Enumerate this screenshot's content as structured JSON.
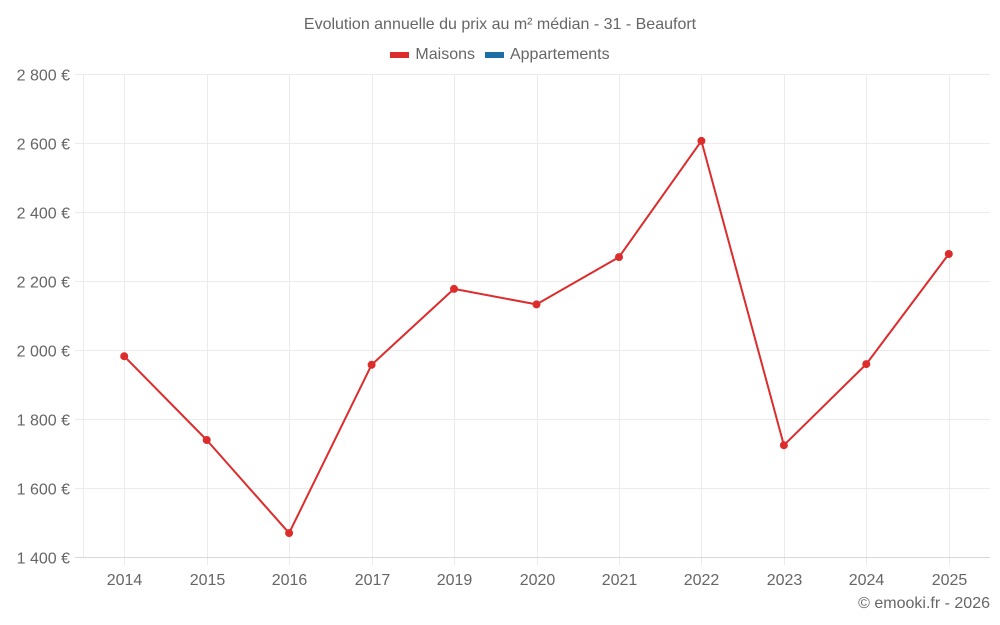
{
  "chart_data": {
    "type": "line",
    "title": "Evolution annuelle du prix au m² médian - 31 - Beaufort",
    "xlabel": "",
    "ylabel": "",
    "categories": [
      "2014",
      "2015",
      "2016",
      "2017",
      "2019",
      "2020",
      "2021",
      "2022",
      "2023",
      "2024",
      "2025"
    ],
    "series": [
      {
        "name": "Maisons",
        "color": "#dd2c2c",
        "values": [
          1983,
          1740,
          1470,
          1958,
          2178,
          2133,
          2270,
          2607,
          1725,
          1960,
          2279
        ]
      },
      {
        "name": "Appartements",
        "color": "#1c6ea4",
        "values": []
      }
    ],
    "ylim": [
      1400,
      2800
    ],
    "yticks": [
      1400,
      1600,
      1800,
      2000,
      2200,
      2400,
      2600,
      2800
    ],
    "ytick_labels": [
      "1 400 €",
      "1 600 €",
      "1 800 €",
      "2 000 €",
      "2 200 €",
      "2 400 €",
      "2 600 €",
      "2 800 €"
    ],
    "grid": true,
    "legend_position": "top-center"
  },
  "title": "Evolution annuelle du prix au m² médian - 31 - Beaufort",
  "legend": [
    {
      "label": "Maisons",
      "color": "#dd2c2c"
    },
    {
      "label": "Appartements",
      "color": "#1c6ea4"
    }
  ],
  "credit": "© emooki.fr - 2026"
}
